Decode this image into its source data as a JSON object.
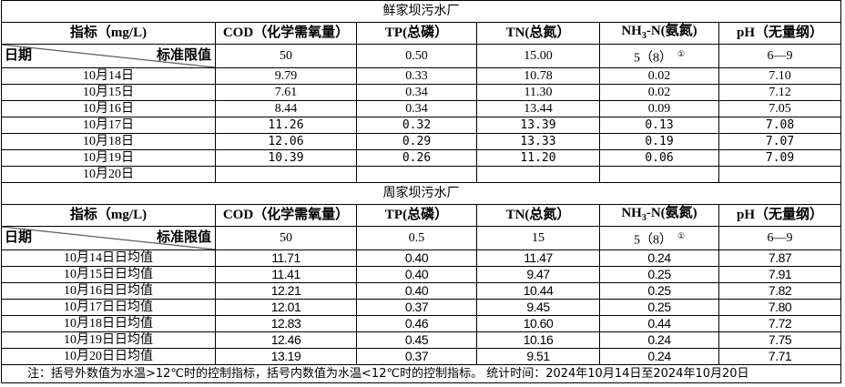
{
  "headers": [
    "指标（mg/L)",
    "COD（化学需氧量）",
    "TP(总磷）",
    "TN(总氮）",
    "NH3-N(氨氮)",
    "pH（无量纲）"
  ],
  "date_label": "日期",
  "std_label": "标准限值",
  "nh3_prefix": "NH",
  "nh3_sub": "3",
  "nh3_suffix": "-N(氨氮)",
  "note_mark": "①",
  "plant1": {
    "title": "鲜家坝污水厂",
    "standards": [
      "50",
      "0.50",
      "15.00",
      "5（8）",
      "6—9"
    ],
    "rows": [
      [
        "10月14日",
        "9.79",
        "0.33",
        "10.78",
        "0.02",
        "7.10"
      ],
      [
        "10月15日",
        "7.61",
        "0.34",
        "11.30",
        "0.02",
        "7.12"
      ],
      [
        "10月16日",
        "8.44",
        "0.34",
        "13.44",
        "0.09",
        "7.05"
      ],
      [
        "10月17日",
        "11.26",
        "0.32",
        "13.39",
        "0.13",
        "7.08"
      ],
      [
        "10月18日",
        "12.06",
        "0.29",
        "13.33",
        "0.19",
        "7.07"
      ],
      [
        "10月19日",
        "10.39",
        "0.26",
        "11.20",
        "0.06",
        "7.09"
      ],
      [
        "10月20日",
        "",
        "",
        "",
        "",
        ""
      ]
    ]
  },
  "plant2": {
    "title": "周家坝污水厂",
    "standards": [
      "50",
      "0.5",
      "15",
      "5（8）",
      "6—9"
    ],
    "rows": [
      [
        "10月14日日均值",
        "11.71",
        "0.40",
        "11.47",
        "0.24",
        "7.87"
      ],
      [
        "10月15日日均值",
        "11.41",
        "0.40",
        "9.47",
        "0.25",
        "7.91"
      ],
      [
        "10月16日日均值",
        "12.21",
        "0.40",
        "10.44",
        "0.25",
        "7.82"
      ],
      [
        "10月17日日均值",
        "12.01",
        "0.37",
        "9.45",
        "0.25",
        "7.80"
      ],
      [
        "10月18日日均值",
        "12.83",
        "0.46",
        "10.60",
        "0.44",
        "7.72"
      ],
      [
        "10月19日日均值",
        "12.46",
        "0.45",
        "10.16",
        "0.24",
        "7.75"
      ],
      [
        "10月20日日均值",
        "13.19",
        "0.37",
        "9.51",
        "0.24",
        "7.71"
      ]
    ]
  },
  "note": "注：括号外数值为水温>12℃时的控制指标，括号内数值为水温<12℃时的控制指标。  统计时间：2024年10月14日至2024年10月20日"
}
